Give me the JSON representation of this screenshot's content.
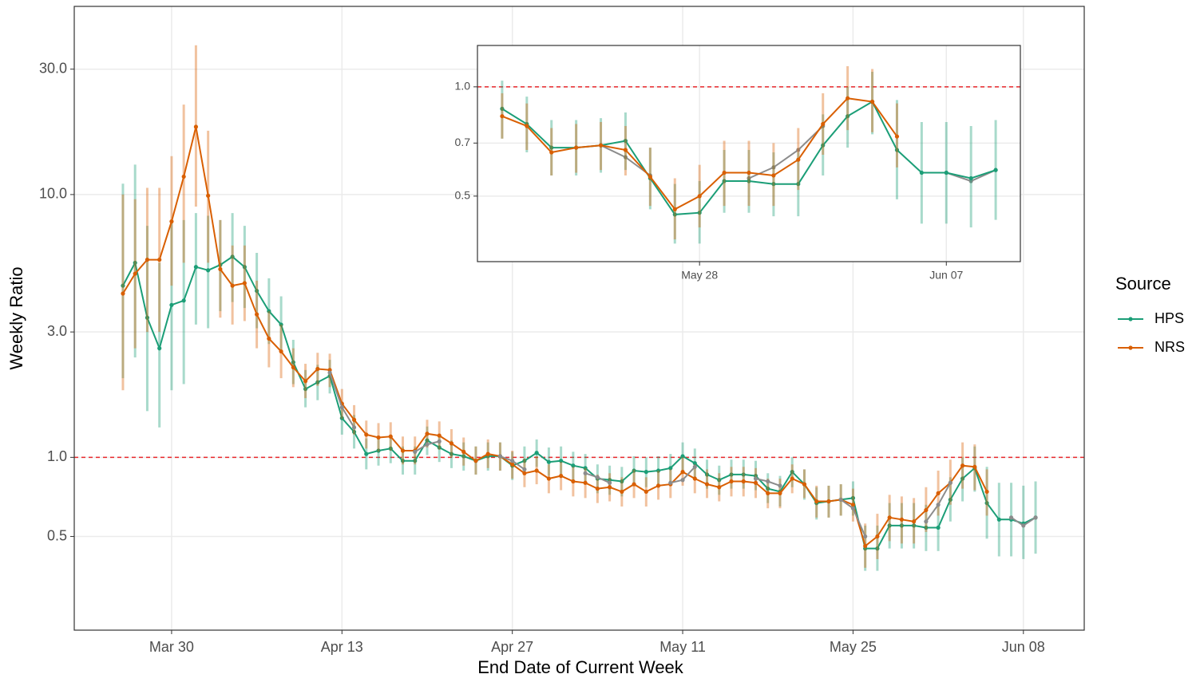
{
  "chart_data": [
    {
      "type": "line",
      "x_label": "End Date of Current Week",
      "y_label": "Weekly Ratio",
      "log_y": true,
      "grid": true,
      "legend": "right",
      "legend_title": "Source",
      "hline": 1,
      "hline_color": "#e8272b",
      "xlim": [
        "Mar 22",
        "Jun 13"
      ],
      "xticks": [
        "Mar 30",
        "Apr 13",
        "Apr 27",
        "May 11",
        "May 25",
        "Jun 08"
      ],
      "ylim": [
        0.22,
        52
      ],
      "yticks": [
        {
          "value": 30,
          "label": "30.0"
        },
        {
          "value": 10,
          "label": "10.0"
        },
        {
          "value": 3,
          "label": "3.0"
        },
        {
          "value": 1,
          "label": "1.0"
        },
        0.5
      ],
      "x": [
        "Mar 26",
        "Mar 27",
        "Mar 28",
        "Mar 29",
        "Mar 30",
        "Mar 31",
        "Apr 01",
        "Apr 02",
        "Apr 03",
        "Apr 04",
        "Apr 05",
        "Apr 06",
        "Apr 07",
        "Apr 08",
        "Apr 09",
        "Apr 10",
        "Apr 11",
        "Apr 12",
        "Apr 13",
        "Apr 14",
        "Apr 15",
        "Apr 16",
        "Apr 17",
        "Apr 18",
        "Apr 19",
        "Apr 20",
        "Apr 21",
        "Apr 22",
        "Apr 23",
        "Apr 24",
        "Apr 25",
        "Apr 26",
        "Apr 27",
        "Apr 28",
        "Apr 29",
        "Apr 30",
        "May 01",
        "May 02",
        "May 03",
        "May 04",
        "May 05",
        "May 06",
        "May 07",
        "May 08",
        "May 09",
        "May 10",
        "May 11",
        "May 12",
        "May 13",
        "May 14",
        "May 15",
        "May 16",
        "May 17",
        "May 18",
        "May 19",
        "May 20",
        "May 21",
        "May 22",
        "May 23",
        "May 24",
        "May 25",
        "May 26",
        "May 27",
        "May 28",
        "May 29",
        "May 30",
        "May 31",
        "Jun 01",
        "Jun 02",
        "Jun 03",
        "Jun 04",
        "Jun 05",
        "Jun 06",
        "Jun 07",
        "Jun 08",
        "Jun 09"
      ],
      "series": [
        {
          "name": "HPS",
          "color": "#1b9e77",
          "values": [
            4.5,
            5.5,
            3.4,
            2.6,
            3.8,
            3.95,
            5.3,
            5.15,
            5.4,
            5.8,
            5.3,
            4.3,
            3.6,
            3.2,
            2.3,
            1.82,
            1.93,
            2.04,
            1.41,
            1.25,
            1.03,
            1.06,
            1.08,
            0.97,
            0.97,
            1.16,
            1.09,
            1.03,
            1.01,
            0.97,
            1.01,
            1.01,
            0.93,
            0.97,
            1.04,
            0.96,
            0.97,
            0.93,
            0.91,
            0.83,
            0.82,
            0.81,
            0.89,
            0.88,
            0.89,
            0.91,
            1.01,
            0.95,
            0.86,
            0.82,
            0.86,
            0.86,
            0.85,
            0.76,
            0.74,
            0.88,
            0.79,
            0.67,
            0.68,
            0.69,
            0.7,
            0.45,
            0.45,
            0.55,
            0.55,
            0.55,
            0.54,
            0.54,
            0.69,
            0.83,
            0.91,
            0.67,
            0.58,
            0.58,
            0.56,
            0.59
          ],
          "lower": [
            2.0,
            2.4,
            1.5,
            1.3,
            1.8,
            1.9,
            3.2,
            3.1,
            3.6,
            3.9,
            3.7,
            3.1,
            2.7,
            2.5,
            1.9,
            1.55,
            1.65,
            1.75,
            1.22,
            1.08,
            0.9,
            0.93,
            0.95,
            0.86,
            0.86,
            1.02,
            0.96,
            0.91,
            0.89,
            0.86,
            0.89,
            0.89,
            0.82,
            0.86,
            0.92,
            0.85,
            0.86,
            0.82,
            0.8,
            0.73,
            0.72,
            0.71,
            0.78,
            0.77,
            0.78,
            0.8,
            0.89,
            0.84,
            0.76,
            0.72,
            0.76,
            0.76,
            0.75,
            0.67,
            0.65,
            0.77,
            0.69,
            0.58,
            0.59,
            0.6,
            0.6,
            0.37,
            0.37,
            0.45,
            0.45,
            0.45,
            0.44,
            0.44,
            0.57,
            0.68,
            0.74,
            0.49,
            0.42,
            0.42,
            0.41,
            0.43
          ],
          "upper": [
            11,
            13,
            7.6,
            5.5,
            8.0,
            8.0,
            8.5,
            8.3,
            8.0,
            8.5,
            7.6,
            6.0,
            4.8,
            4.1,
            2.8,
            2.15,
            2.25,
            2.35,
            1.63,
            1.45,
            1.18,
            1.2,
            1.22,
            1.1,
            1.1,
            1.31,
            1.23,
            1.16,
            1.14,
            1.1,
            1.14,
            1.14,
            1.05,
            1.1,
            1.17,
            1.09,
            1.1,
            1.05,
            1.03,
            0.94,
            0.93,
            0.92,
            1.01,
            1.0,
            1.01,
            1.03,
            1.14,
            1.08,
            0.98,
            0.93,
            0.98,
            0.98,
            0.97,
            0.87,
            0.85,
            1.0,
            0.9,
            0.77,
            0.78,
            0.79,
            0.81,
            0.55,
            0.55,
            0.67,
            0.67,
            0.67,
            0.66,
            0.66,
            0.84,
            1.0,
            1.1,
            0.92,
            0.8,
            0.8,
            0.78,
            0.81
          ]
        },
        {
          "name": "NRS",
          "color": "#d95f02",
          "values": [
            4.2,
            5.0,
            5.65,
            5.65,
            7.9,
            11.7,
            18.1,
            9.9,
            5.2,
            4.5,
            4.6,
            3.5,
            2.83,
            2.53,
            2.2,
            1.95,
            2.17,
            2.15,
            1.6,
            1.39,
            1.22,
            1.19,
            1.2,
            1.06,
            1.06,
            1.23,
            1.21,
            1.13,
            1.05,
            0.97,
            1.03,
            1.01,
            0.94,
            0.87,
            0.89,
            0.83,
            0.85,
            0.81,
            0.8,
            0.76,
            0.77,
            0.74,
            0.79,
            0.74,
            0.78,
            0.79,
            0.88,
            0.83,
            0.79,
            0.77,
            0.81,
            0.81,
            0.8,
            0.73,
            0.73,
            0.83,
            0.79,
            0.68,
            0.68,
            0.69,
            0.66,
            0.46,
            0.5,
            0.59,
            0.58,
            0.57,
            0.63,
            0.73,
            0.8,
            0.93,
            0.92,
            0.74,
            null,
            null,
            null,
            null
          ],
          "lower": [
            1.8,
            2.6,
            3.0,
            3.0,
            4.5,
            5.5,
            9.0,
            5.5,
            3.4,
            3.2,
            3.3,
            2.6,
            2.2,
            2.0,
            1.85,
            1.68,
            1.87,
            1.85,
            1.4,
            1.22,
            1.08,
            1.05,
            1.06,
            0.94,
            0.94,
            1.09,
            1.07,
            1.0,
            0.93,
            0.86,
            0.91,
            0.89,
            0.83,
            0.77,
            0.79,
            0.73,
            0.75,
            0.71,
            0.7,
            0.67,
            0.68,
            0.65,
            0.7,
            0.65,
            0.69,
            0.7,
            0.78,
            0.73,
            0.7,
            0.68,
            0.71,
            0.71,
            0.7,
            0.64,
            0.64,
            0.73,
            0.7,
            0.59,
            0.59,
            0.6,
            0.57,
            0.38,
            0.41,
            0.48,
            0.47,
            0.47,
            0.52,
            0.6,
            0.66,
            0.76,
            0.75,
            0.6,
            null,
            null,
            null,
            null
          ],
          "upper": [
            10,
            9.6,
            10.6,
            10.6,
            14,
            22,
            37,
            17.5,
            8.0,
            6.4,
            6.4,
            4.7,
            3.6,
            3.2,
            2.6,
            2.27,
            2.5,
            2.48,
            1.82,
            1.58,
            1.38,
            1.35,
            1.36,
            1.2,
            1.2,
            1.39,
            1.37,
            1.28,
            1.19,
            1.1,
            1.17,
            1.14,
            1.06,
            0.99,
            1.01,
            0.94,
            0.96,
            0.92,
            0.91,
            0.86,
            0.87,
            0.84,
            0.9,
            0.84,
            0.89,
            0.9,
            1.0,
            0.94,
            0.9,
            0.87,
            0.92,
            0.92,
            0.91,
            0.83,
            0.83,
            0.94,
            0.9,
            0.78,
            0.78,
            0.79,
            0.76,
            0.56,
            0.61,
            0.72,
            0.71,
            0.7,
            0.77,
            0.89,
            0.98,
            1.14,
            1.12,
            0.9,
            null,
            null,
            null,
            null
          ]
        },
        {
          "color": "#8c8c8c",
          "values": [
            null,
            null,
            null,
            null,
            null,
            null,
            null,
            null,
            null,
            null,
            null,
            null,
            null,
            null,
            null,
            null,
            null,
            2.1,
            1.55,
            1.3,
            null,
            null,
            null,
            null,
            1.05,
            1.12,
            1.15,
            null,
            null,
            null,
            null,
            1.01,
            0.97,
            0.9,
            null,
            null,
            null,
            null,
            0.87,
            0.84,
            0.8,
            null,
            null,
            null,
            null,
            0.8,
            0.82,
            0.92,
            null,
            null,
            null,
            null,
            0.83,
            0.81,
            0.78,
            null,
            null,
            null,
            null,
            0.69,
            0.64,
            0.5,
            null,
            null,
            null,
            null,
            0.57,
            0.66,
            0.8,
            null,
            null,
            null,
            null,
            0.59,
            0.55,
            0.59
          ]
        }
      ]
    },
    {
      "type": "line",
      "log_y": true,
      "grid": true,
      "hline": 1,
      "hline_color": "#e8272b",
      "xlim": [
        "May 19",
        "Jun 10"
      ],
      "xticks": [
        "May 28",
        "Jun 07"
      ],
      "ylim": [
        0.33,
        1.3
      ],
      "yticks": [
        {
          "value": 1,
          "label": "1.0"
        },
        0.7,
        0.5
      ],
      "x": [
        "May 20",
        "May 21",
        "May 22",
        "May 23",
        "May 24",
        "May 25",
        "May 26",
        "May 27",
        "May 28",
        "May 29",
        "May 30",
        "May 31",
        "Jun 01",
        "Jun 02",
        "Jun 03",
        "Jun 04",
        "Jun 05",
        "Jun 06",
        "Jun 07",
        "Jun 08",
        "Jun 09"
      ],
      "series": [
        {
          "color": "#8c8c8c",
          "values": [
            null,
            null,
            null,
            null,
            0.69,
            0.64,
            0.57,
            null,
            null,
            null,
            0.56,
            0.6,
            0.67,
            0.78,
            null,
            null,
            null,
            null,
            0.58,
            0.55,
            0.59
          ]
        },
        {
          "color": "#1b9e77",
          "values": [
            0.87,
            0.79,
            0.68,
            0.68,
            0.69,
            0.71,
            0.56,
            0.445,
            0.45,
            0.55,
            0.55,
            0.54,
            0.54,
            0.69,
            0.83,
            0.91,
            0.67,
            0.58,
            0.58,
            0.56,
            0.59
          ],
          "lower": [
            0.72,
            0.66,
            0.57,
            0.57,
            0.58,
            0.59,
            0.46,
            0.37,
            0.37,
            0.45,
            0.45,
            0.44,
            0.44,
            0.57,
            0.68,
            0.74,
            0.49,
            0.42,
            0.42,
            0.41,
            0.43
          ],
          "upper": [
            1.04,
            0.94,
            0.81,
            0.81,
            0.82,
            0.85,
            0.68,
            0.54,
            0.55,
            0.67,
            0.67,
            0.66,
            0.66,
            0.84,
            1.0,
            1.1,
            0.92,
            0.8,
            0.8,
            0.78,
            0.81
          ]
        },
        {
          "color": "#d95f02",
          "values": [
            0.83,
            0.78,
            0.66,
            0.68,
            0.69,
            0.67,
            0.565,
            0.46,
            0.5,
            0.58,
            0.58,
            0.57,
            0.63,
            0.79,
            0.93,
            0.91,
            0.73,
            null,
            null,
            null,
            null
          ],
          "lower": [
            0.72,
            0.67,
            0.57,
            0.58,
            0.59,
            0.57,
            0.47,
            0.38,
            0.41,
            0.47,
            0.47,
            0.47,
            0.52,
            0.65,
            0.76,
            0.75,
            0.6,
            null,
            null,
            null,
            null
          ],
          "upper": [
            0.96,
            0.9,
            0.77,
            0.79,
            0.8,
            0.78,
            0.68,
            0.56,
            0.61,
            0.71,
            0.71,
            0.7,
            0.77,
            0.96,
            1.14,
            1.12,
            0.9,
            null,
            null,
            null,
            null
          ]
        }
      ]
    }
  ]
}
